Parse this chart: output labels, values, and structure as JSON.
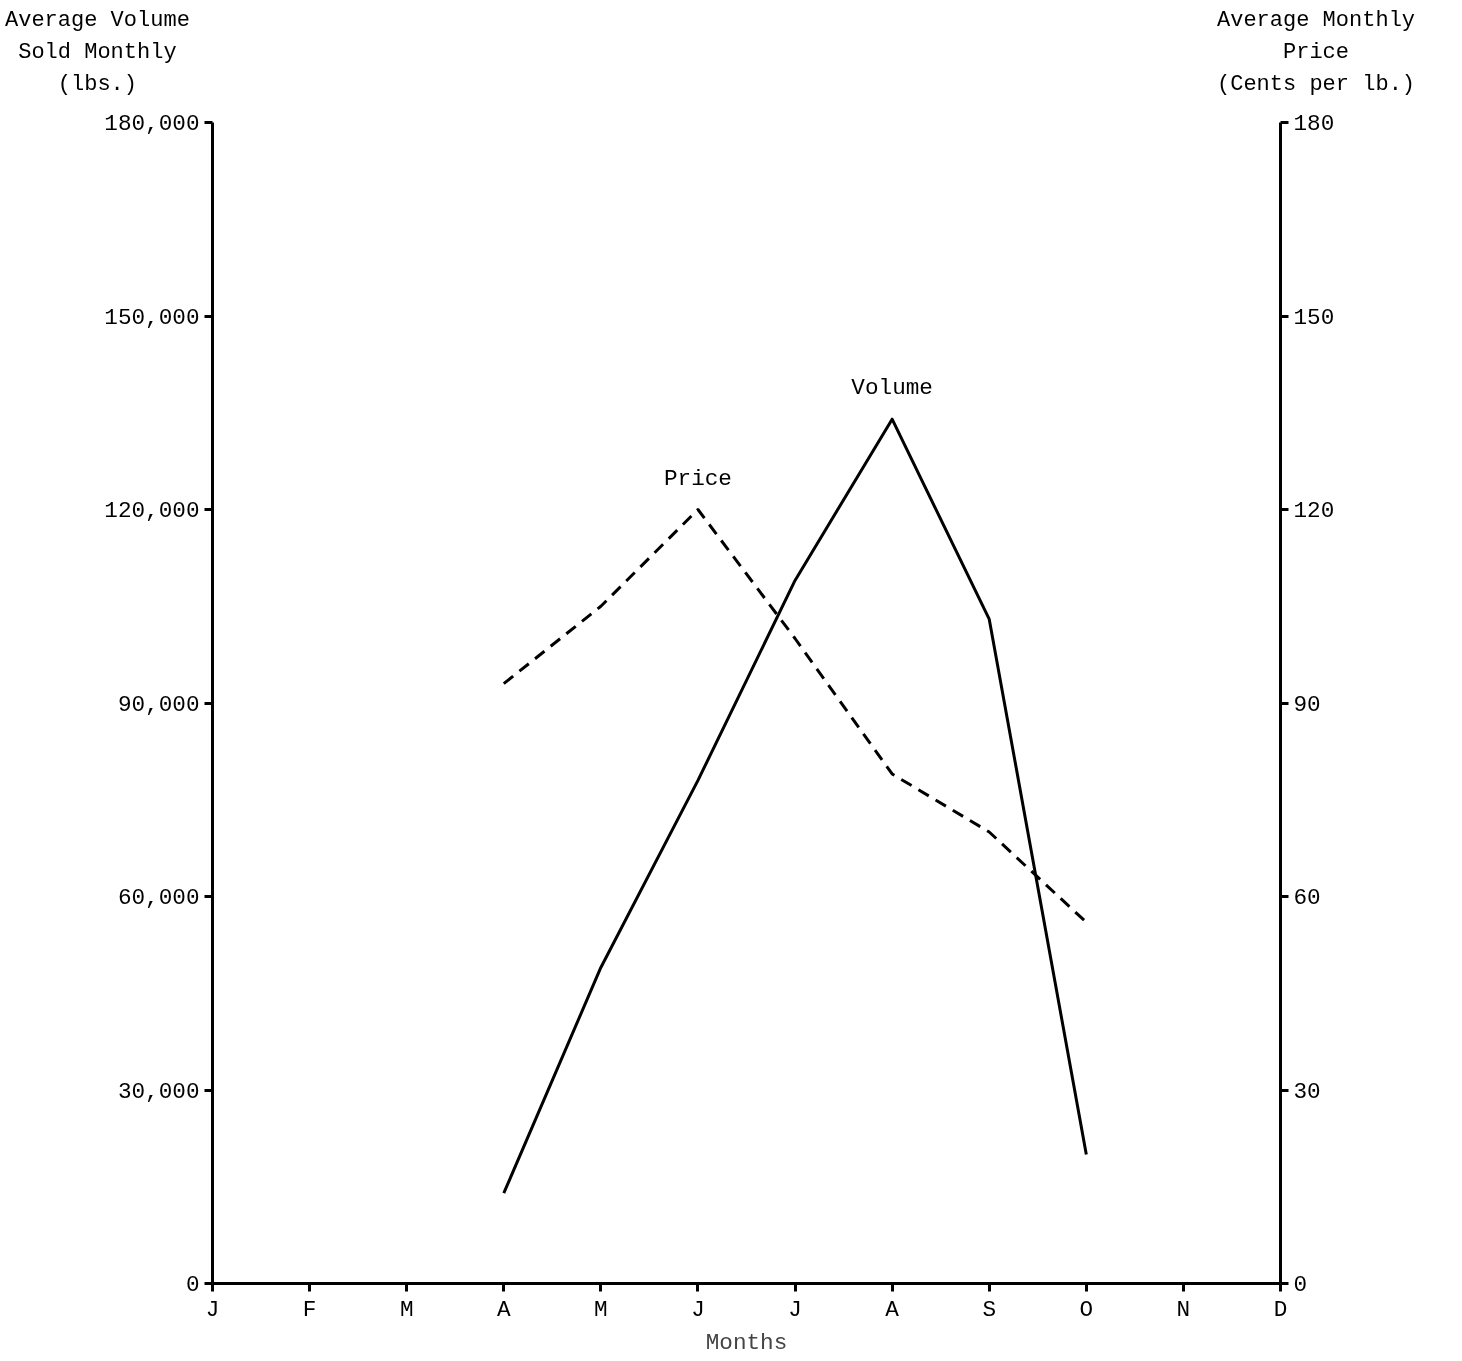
{
  "chart_data": {
    "type": "line",
    "xlabel": "Months",
    "ylabel": "Average Volume\nSold Monthly\n(lbs.)",
    "y2label": "Average Monthly\nPrice\n(Cents per lb.)",
    "categories": [
      "J",
      "F",
      "M",
      "A",
      "M",
      "J",
      "J",
      "A",
      "S",
      "O",
      "N",
      "D"
    ],
    "series": [
      {
        "name": "Price",
        "color": "#000000",
        "axis": "y2",
        "line_style": "dashed",
        "values": [
          null,
          null,
          null,
          93,
          105,
          120,
          100,
          79,
          70,
          56,
          null,
          null
        ]
      },
      {
        "name": "Volume",
        "color": "#000000",
        "line_style": "solid",
        "values": [
          null,
          null,
          null,
          14000,
          49000,
          78000,
          109000,
          134000,
          103000,
          20000,
          null,
          null
        ]
      }
    ],
    "ylim": [
      0,
      180000
    ],
    "yticks": [
      0,
      {
        "value": 30000,
        "label": "30,000"
      },
      {
        "value": 60000,
        "label": "60,000"
      },
      {
        "value": 90000,
        "label": "90,000"
      },
      {
        "value": 120000,
        "label": "120,000"
      },
      {
        "value": 150000,
        "label": "150,000"
      },
      {
        "value": 180000,
        "label": "180,000"
      }
    ],
    "y2lim": [
      0,
      180
    ],
    "y2ticks": [
      0,
      30,
      60,
      90,
      120,
      150,
      180
    ]
  }
}
